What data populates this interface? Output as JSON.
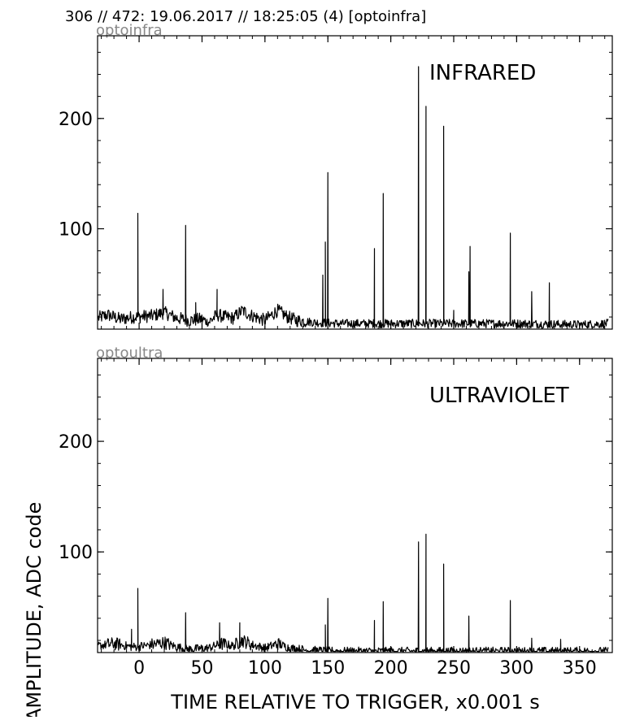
{
  "header": {
    "title": "306 // 472:   19.06.2017 // 18:25:05 (4)  [optoinfra]"
  },
  "chart_data": [
    {
      "type": "line",
      "channel_label": "optoinfra",
      "annotation": "INFRARED",
      "xlim": [
        -33,
        376
      ],
      "ylim": [
        9,
        275
      ],
      "y_ticks": [
        100,
        200
      ],
      "x_ticks": [
        0,
        50,
        100,
        150,
        200,
        250,
        300,
        350
      ],
      "x_tick_labels_visible": false,
      "grid": false,
      "series": [
        {
          "color": "#000000",
          "baseline": [
            [
              -33,
              19
            ],
            [
              -25,
              22
            ],
            [
              -15,
              18
            ],
            [
              -5,
              20
            ],
            [
              10,
              21
            ],
            [
              20,
              24
            ],
            [
              30,
              19
            ],
            [
              40,
              17
            ],
            [
              50,
              18
            ],
            [
              55,
              15
            ],
            [
              62,
              22
            ],
            [
              68,
              20
            ],
            [
              75,
              19
            ],
            [
              82,
              26
            ],
            [
              88,
              22
            ],
            [
              95,
              19
            ],
            [
              100,
              17
            ],
            [
              110,
              26
            ],
            [
              118,
              20
            ],
            [
              125,
              17
            ],
            [
              140,
              15
            ],
            [
              160,
              14
            ],
            [
              200,
              14
            ],
            [
              250,
              14
            ],
            [
              300,
              14
            ],
            [
              350,
              13
            ],
            [
              373,
              14
            ]
          ],
          "spikes": [
            [
              -1,
              114
            ],
            [
              19,
              45
            ],
            [
              37,
              103
            ],
            [
              45,
              33
            ],
            [
              62,
              45
            ],
            [
              146,
              58
            ],
            [
              148,
              88
            ],
            [
              150,
              151
            ],
            [
              187,
              82
            ],
            [
              194,
              132
            ],
            [
              222,
              247
            ],
            [
              228,
              211
            ],
            [
              242,
              193
            ],
            [
              250,
              26
            ],
            [
              262,
              61
            ],
            [
              263,
              84
            ],
            [
              295,
              96
            ],
            [
              312,
              43
            ],
            [
              326,
              51
            ]
          ]
        }
      ]
    },
    {
      "type": "line",
      "channel_label": "optoultra",
      "annotation": "ULTRAVIOLET",
      "xlim": [
        -33,
        376
      ],
      "ylim": [
        9,
        275
      ],
      "y_ticks": [
        100,
        200
      ],
      "x_ticks": [
        0,
        50,
        100,
        150,
        200,
        250,
        300,
        350
      ],
      "x_tick_labels": [
        "0",
        "50",
        "100",
        "150",
        "200",
        "250",
        "300",
        "350"
      ],
      "xlabel": "TIME RELATIVE TO TRIGGER,   x0.001 s",
      "ylabel": "AMPLITUDE,  ADC code",
      "grid": false,
      "series": [
        {
          "color": "#000000",
          "baseline": [
            [
              -33,
              15
            ],
            [
              -20,
              17
            ],
            [
              -5,
              14
            ],
            [
              10,
              16
            ],
            [
              20,
              18
            ],
            [
              30,
              14
            ],
            [
              40,
              12
            ],
            [
              55,
              13
            ],
            [
              65,
              17
            ],
            [
              75,
              15
            ],
            [
              82,
              20
            ],
            [
              90,
              16
            ],
            [
              100,
              13
            ],
            [
              110,
              17
            ],
            [
              120,
              13
            ],
            [
              135,
              11
            ],
            [
              160,
              10
            ],
            [
              200,
              10
            ],
            [
              250,
              10
            ],
            [
              300,
              10
            ],
            [
              350,
              10
            ],
            [
              373,
              10
            ]
          ],
          "spikes": [
            [
              -1,
              67
            ],
            [
              -6,
              30
            ],
            [
              37,
              45
            ],
            [
              64,
              36
            ],
            [
              80,
              36
            ],
            [
              148,
              34
            ],
            [
              150,
              58
            ],
            [
              187,
              38
            ],
            [
              194,
              55
            ],
            [
              222,
              109
            ],
            [
              228,
              116
            ],
            [
              242,
              89
            ],
            [
              262,
              42
            ],
            [
              295,
              56
            ],
            [
              312,
              22
            ],
            [
              335,
              21
            ]
          ]
        }
      ]
    }
  ]
}
